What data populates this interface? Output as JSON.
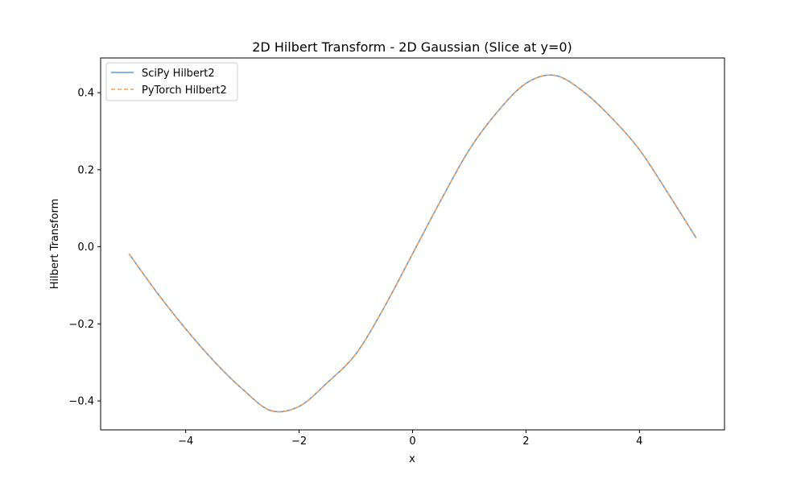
{
  "chart_data": {
    "type": "line",
    "title": "2D Hilbert Transform - 2D Gaussian (Slice at y=0)",
    "xlabel": "x",
    "ylabel": "Hilbert Transform",
    "xlim": [
      -5.5,
      5.5
    ],
    "ylim": [
      -0.475,
      0.49
    ],
    "xticks": [
      -4,
      -2,
      0,
      2,
      4
    ],
    "xtick_labels": [
      "−4",
      "−2",
      "0",
      "2",
      "4"
    ],
    "yticks": [
      -0.4,
      -0.2,
      0.0,
      0.2,
      0.4
    ],
    "ytick_labels": [
      "−0.4",
      "−0.2",
      "0.0",
      "0.2",
      "0.4"
    ],
    "grid": false,
    "legend_position": "upper-left",
    "x": [
      -5.0,
      -4.5,
      -4.0,
      -3.5,
      -3.0,
      -2.5,
      -2.0,
      -1.5,
      -1.0,
      -0.5,
      0.0,
      0.5,
      1.0,
      1.5,
      2.0,
      2.5,
      3.0,
      3.5,
      4.0,
      4.5,
      5.0
    ],
    "series": [
      {
        "name": "SciPy Hilbert2",
        "color": "#5b9bd5",
        "style": "solid",
        "values": [
          -0.018,
          -0.12,
          -0.213,
          -0.297,
          -0.369,
          -0.425,
          -0.414,
          -0.352,
          -0.278,
          -0.157,
          -0.018,
          0.121,
          0.252,
          0.351,
          0.424,
          0.445,
          0.404,
          0.336,
          0.252,
          0.14,
          0.023
        ]
      },
      {
        "name": "PyTorch Hilbert2",
        "color": "#f0a060",
        "style": "dashed",
        "values": [
          -0.018,
          -0.12,
          -0.213,
          -0.297,
          -0.369,
          -0.425,
          -0.414,
          -0.352,
          -0.278,
          -0.157,
          -0.018,
          0.121,
          0.252,
          0.351,
          0.424,
          0.445,
          0.404,
          0.336,
          0.252,
          0.14,
          0.023
        ]
      }
    ]
  }
}
